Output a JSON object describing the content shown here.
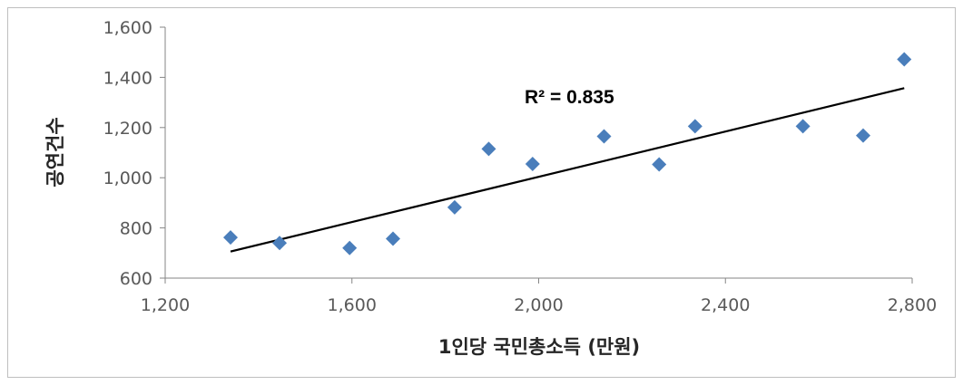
{
  "chart_data": {
    "type": "scatter",
    "xlabel": "1인당 국민총소득 (만원)",
    "ylabel": "공연건수",
    "xlim": [
      1200,
      2800
    ],
    "ylim": [
      600,
      1600
    ],
    "x_ticks": [
      1200,
      1600,
      2000,
      2400,
      2800
    ],
    "y_ticks": [
      600,
      800,
      1000,
      1200,
      1400,
      1600
    ],
    "x_tick_labels": [
      "1,200",
      "1,600",
      "2,000",
      "2,400",
      "2,800"
    ],
    "y_tick_labels": [
      "600",
      "800",
      "1,000",
      "1,200",
      "1,400",
      "1,600"
    ],
    "grid": false,
    "marker": "diamond",
    "marker_color": "#4a7ebb",
    "series": [
      {
        "points": [
          {
            "x": 1340,
            "y": 762
          },
          {
            "x": 1445,
            "y": 740
          },
          {
            "x": 1595,
            "y": 720
          },
          {
            "x": 1688,
            "y": 757
          },
          {
            "x": 1820,
            "y": 882
          },
          {
            "x": 1893,
            "y": 1115
          },
          {
            "x": 1987,
            "y": 1055
          },
          {
            "x": 2140,
            "y": 1165
          },
          {
            "x": 2258,
            "y": 1053
          },
          {
            "x": 2335,
            "y": 1205
          },
          {
            "x": 2566,
            "y": 1205
          },
          {
            "x": 2695,
            "y": 1168
          },
          {
            "x": 2783,
            "y": 1472
          }
        ]
      }
    ],
    "trendline": {
      "type": "linear",
      "from": {
        "x": 1340,
        "y": 706
      },
      "to": {
        "x": 2783,
        "y": 1357
      },
      "color": "#000000"
    },
    "annotation": "R² = 0.835"
  }
}
